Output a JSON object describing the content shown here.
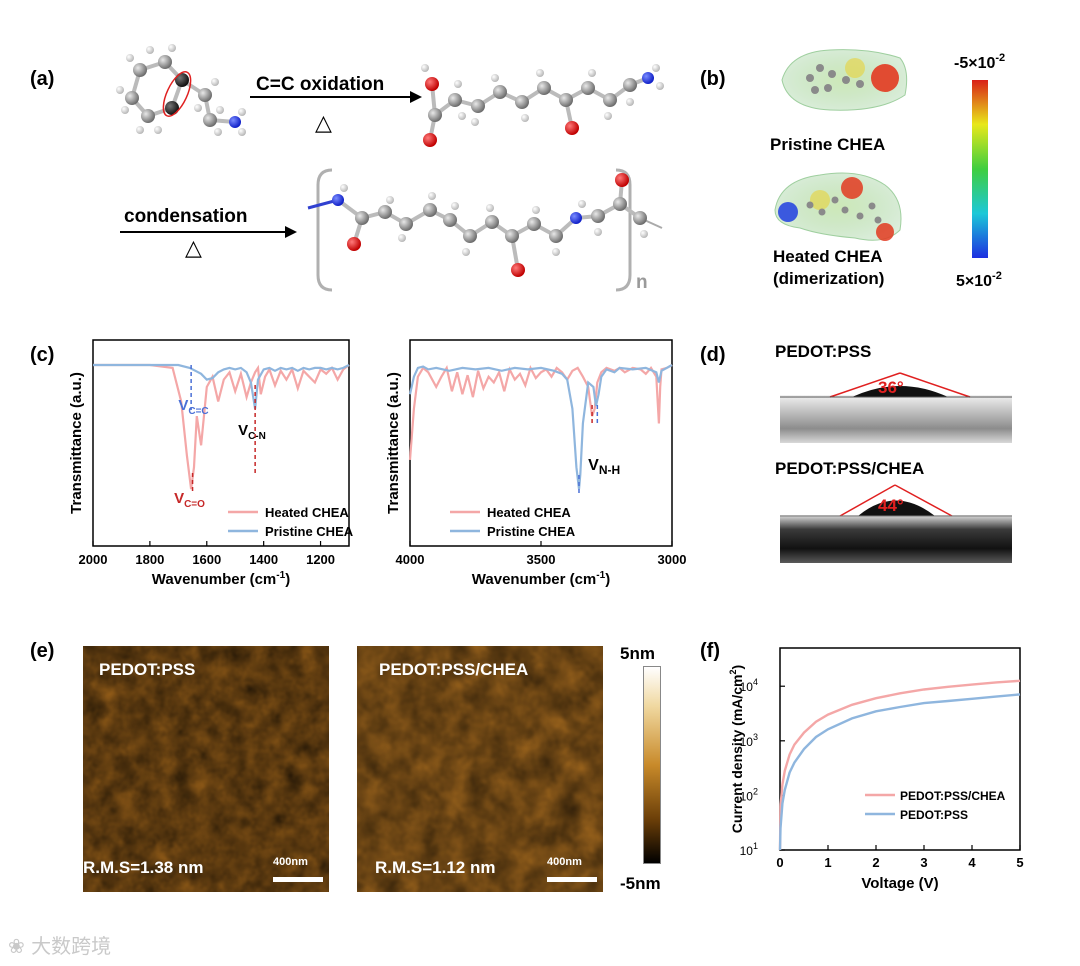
{
  "panels": {
    "a": "(a)",
    "b": "(b)",
    "c": "(c)",
    "d": "(d)",
    "e": "(e)",
    "f": "(f)"
  },
  "panel_a": {
    "reaction1_label": "C=C oxidation",
    "reaction2_label": "condensation",
    "heat_symbol": "△",
    "repeat_subscript": "n"
  },
  "panel_b": {
    "pristine_label": "Pristine CHEA",
    "heated_label_line1": "Heated CHEA",
    "heated_label_line2": "(dimerization)",
    "colorbar_top": "-5×10",
    "colorbar_top_exp": "-2",
    "colorbar_bottom": "5×10",
    "colorbar_bottom_exp": "-2",
    "colors": {
      "top": "#d92018",
      "upper": "#e8e81a",
      "mid": "#3fce3f",
      "lower": "#1cc8d8",
      "bottom": "#1d2fe0"
    }
  },
  "chart_data": [
    {
      "type": "line",
      "panel": "c-left",
      "xlabel": "Wavenumber (cm",
      "xlabel_sup": "-1",
      "xlabel_end": ")",
      "ylabel": "Transmittance (a.u.)",
      "x_ticks": [
        "2000",
        "1800",
        "1600",
        "1400",
        "1200"
      ],
      "xlim": [
        2000,
        1100
      ],
      "series": [
        {
          "name": "Heated CHEA",
          "color": "#f4a7a7",
          "x": [
            2000,
            1900,
            1800,
            1720,
            1690,
            1670,
            1655,
            1645,
            1635,
            1620,
            1600,
            1580,
            1560,
            1540,
            1520,
            1500,
            1480,
            1460,
            1445,
            1430,
            1420,
            1410,
            1395,
            1380,
            1360,
            1340,
            1320,
            1300,
            1280,
            1260,
            1240,
            1220,
            1200,
            1180,
            1160,
            1140,
            1120,
            1100
          ],
          "y": [
            0.0,
            0.0,
            0.0,
            0.02,
            0.25,
            0.62,
            0.85,
            0.7,
            0.35,
            0.55,
            0.15,
            0.08,
            0.25,
            0.1,
            0.05,
            0.18,
            0.06,
            0.22,
            0.12,
            0.05,
            0.02,
            0.2,
            0.08,
            0.03,
            0.14,
            0.04,
            0.1,
            0.03,
            0.16,
            0.04,
            0.08,
            0.12,
            0.03,
            0.06,
            0.02,
            0.1,
            0.03,
            0.0
          ]
        },
        {
          "name": "Pristine CHEA",
          "color": "#8fb6de",
          "x": [
            2000,
            1900,
            1800,
            1700,
            1660,
            1640,
            1620,
            1600,
            1580,
            1560,
            1540,
            1520,
            1500,
            1480,
            1460,
            1445,
            1430,
            1420,
            1400,
            1380,
            1360,
            1340,
            1320,
            1300,
            1280,
            1260,
            1240,
            1220,
            1200,
            1180,
            1160,
            1140,
            1120,
            1100
          ],
          "y": [
            0.0,
            0.0,
            0.0,
            0.0,
            0.02,
            0.04,
            0.06,
            0.1,
            0.09,
            0.05,
            0.03,
            0.02,
            0.03,
            0.02,
            0.05,
            0.12,
            0.3,
            0.1,
            0.03,
            0.02,
            0.04,
            0.02,
            0.03,
            0.02,
            0.04,
            0.02,
            0.03,
            0.02,
            0.02,
            0.03,
            0.02,
            0.03,
            0.02,
            0.0
          ]
        }
      ],
      "annotations": [
        {
          "text": "V",
          "sub": "C=C",
          "color": "#4a6fd6"
        },
        {
          "text": "V",
          "sub": "C-N",
          "color": "#000000"
        },
        {
          "text": "V",
          "sub": "C=O",
          "color": "#c62828"
        }
      ]
    },
    {
      "type": "line",
      "panel": "c-right",
      "xlabel": "Wavenumber (cm",
      "xlabel_sup": "-1",
      "xlabel_end": ")",
      "ylabel": "Transmittance (a.u.)",
      "x_ticks": [
        "4000",
        "3500",
        "3000"
      ],
      "xlim": [
        4000,
        3000
      ],
      "series": [
        {
          "name": "Heated CHEA",
          "color": "#f4a7a7",
          "x": [
            4000,
            3985,
            3970,
            3950,
            3930,
            3900,
            3880,
            3860,
            3840,
            3820,
            3800,
            3780,
            3760,
            3740,
            3720,
            3700,
            3680,
            3660,
            3640,
            3620,
            3600,
            3580,
            3560,
            3540,
            3520,
            3500,
            3480,
            3460,
            3440,
            3420,
            3400,
            3380,
            3360,
            3340,
            3320,
            3305,
            3295,
            3285,
            3270,
            3250,
            3220,
            3200,
            3180,
            3150,
            3120,
            3100,
            3080,
            3060,
            3050,
            3045,
            3040,
            3020,
            3000
          ],
          "y": [
            0.65,
            0.3,
            0.08,
            0.02,
            0.05,
            0.15,
            0.08,
            0.02,
            0.18,
            0.05,
            0.2,
            0.07,
            0.22,
            0.04,
            0.16,
            0.08,
            0.12,
            0.05,
            0.18,
            0.03,
            0.1,
            0.06,
            0.14,
            0.02,
            0.09,
            0.05,
            0.03,
            0.08,
            0.02,
            0.05,
            0.1,
            0.04,
            0.02,
            0.08,
            0.15,
            0.35,
            0.3,
            0.12,
            0.05,
            0.02,
            0.04,
            0.02,
            0.05,
            0.02,
            0.03,
            0.06,
            0.02,
            0.08,
            0.4,
            0.15,
            0.03,
            0.02,
            0.0
          ]
        },
        {
          "name": "Pristine CHEA",
          "color": "#8fb6de",
          "x": [
            4000,
            3985,
            3970,
            3950,
            3930,
            3900,
            3850,
            3800,
            3750,
            3700,
            3650,
            3600,
            3550,
            3500,
            3450,
            3420,
            3400,
            3380,
            3365,
            3355,
            3350,
            3340,
            3320,
            3300,
            3290,
            3280,
            3270,
            3250,
            3220,
            3200,
            3150,
            3100,
            3060,
            3050,
            3040,
            3000
          ],
          "y": [
            0.2,
            0.08,
            0.02,
            0.01,
            0.03,
            0.02,
            0.04,
            0.02,
            0.03,
            0.02,
            0.04,
            0.02,
            0.03,
            0.02,
            0.04,
            0.06,
            0.1,
            0.3,
            0.7,
            0.85,
            0.75,
            0.4,
            0.12,
            0.15,
            0.28,
            0.2,
            0.08,
            0.03,
            0.05,
            0.02,
            0.03,
            0.02,
            0.05,
            0.12,
            0.04,
            0.0
          ]
        }
      ],
      "annotations": [
        {
          "text": "V",
          "sub": "N-H",
          "color": "#000000"
        }
      ]
    },
    {
      "type": "line",
      "panel": "f",
      "xlabel": "Voltage (V)",
      "ylabel": "Current density (mA/cm",
      "ylabel_sup": "2",
      "ylabel_end": ")",
      "x_ticks": [
        "0",
        "1",
        "2",
        "3",
        "4",
        "5"
      ],
      "y_ticks": [
        {
          "base": "10",
          "exp": "1"
        },
        {
          "base": "10",
          "exp": "2"
        },
        {
          "base": "10",
          "exp": "3"
        },
        {
          "base": "10",
          "exp": "4"
        }
      ],
      "xlim": [
        0,
        5
      ],
      "ylim_log10": [
        1,
        4.7
      ],
      "series": [
        {
          "name": "PEDOT:PSS/CHEA",
          "color": "#f4a7a7",
          "x": [
            0.01,
            0.05,
            0.1,
            0.2,
            0.3,
            0.5,
            0.75,
            1,
            1.5,
            2,
            2.5,
            3,
            3.5,
            4,
            4.5,
            5
          ],
          "y_log10": [
            1.8,
            2.2,
            2.45,
            2.75,
            2.93,
            3.15,
            3.35,
            3.48,
            3.66,
            3.78,
            3.87,
            3.94,
            3.99,
            4.03,
            4.07,
            4.1
          ]
        },
        {
          "name": "PEDOT:PSS",
          "color": "#8fb6de",
          "x": [
            0.01,
            0.05,
            0.1,
            0.2,
            0.3,
            0.5,
            0.75,
            1,
            1.5,
            2,
            2.5,
            3,
            3.5,
            4,
            4.5,
            5
          ],
          "y_log10": [
            1.4,
            1.85,
            2.1,
            2.42,
            2.6,
            2.85,
            3.07,
            3.21,
            3.41,
            3.54,
            3.62,
            3.69,
            3.73,
            3.77,
            3.81,
            3.85
          ]
        }
      ]
    }
  ],
  "panel_d": {
    "top_label": "PEDOT:PSS",
    "top_angle": "36°",
    "bottom_label": "PEDOT:PSS/CHEA",
    "bottom_angle": "44°"
  },
  "panel_e": {
    "left_title": "PEDOT:PSS",
    "left_rms": "R.M.S=1.38 nm",
    "right_title": "PEDOT:PSS/CHEA",
    "right_rms": "R.M.S=1.12 nm",
    "scalebar": "400nm",
    "colorbar_top": "5nm",
    "colorbar_bottom": "-5nm"
  },
  "watermark": "大数跨境"
}
